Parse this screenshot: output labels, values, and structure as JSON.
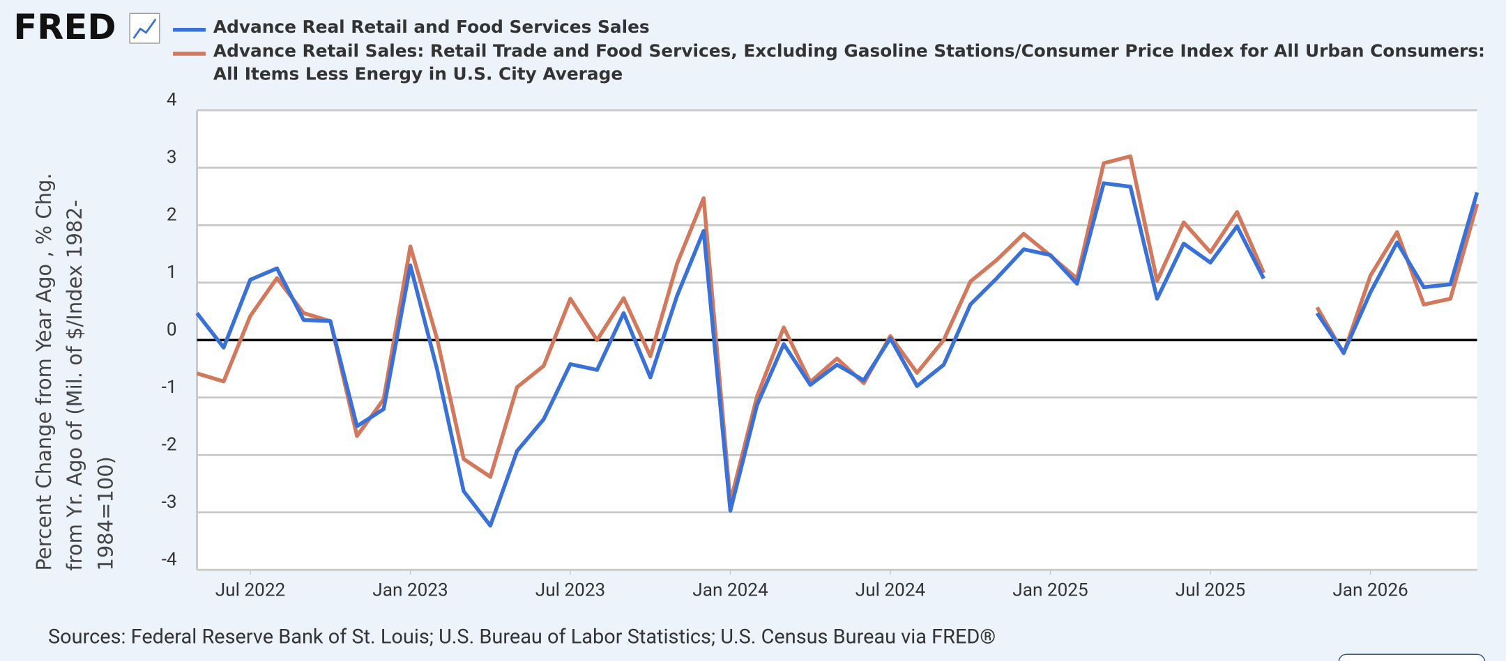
{
  "chart_data": {
    "type": "line",
    "logo": "FRED",
    "ylabel": "Percent Change from Year Ago , % Chg. from Yr. Ago of (Mil. of $/Index 1982-1984=100)",
    "source": "Sources: Federal Reserve Bank of St. Louis; U.S. Bureau of Labor Statistics; U.S. Census Bureau via FRED®",
    "x": [
      "2022-05",
      "2022-06",
      "2022-07",
      "2022-08",
      "2022-09",
      "2022-10",
      "2022-11",
      "2022-12",
      "2023-01",
      "2023-02",
      "2023-03",
      "2023-04",
      "2023-05",
      "2023-06",
      "2023-07",
      "2023-08",
      "2023-09",
      "2023-10",
      "2023-11",
      "2023-12",
      "2024-01",
      "2024-02",
      "2024-03",
      "2024-04",
      "2024-05",
      "2024-06",
      "2024-07",
      "2024-08",
      "2024-09",
      "2024-10",
      "2024-11",
      "2024-12",
      "2025-01",
      "2025-02",
      "2025-03",
      "2025-04",
      "2025-05",
      "2025-06",
      "2025-07",
      "2025-08",
      "2025-09",
      "2025-10",
      "2025-11",
      "2025-12",
      "2026-01",
      "2026-02",
      "2026-03",
      "2026-04",
      "2026-05"
    ],
    "series": [
      {
        "name": "Advance Real Retail and Food Services Sales",
        "color": "#3a71d6",
        "values": [
          0.47,
          -0.13,
          1.05,
          1.25,
          0.35,
          0.33,
          -1.5,
          -1.2,
          1.3,
          -0.5,
          -2.63,
          -3.23,
          -1.93,
          -1.38,
          -0.42,
          -0.52,
          0.47,
          -0.65,
          0.77,
          1.9,
          -2.97,
          -1.13,
          -0.07,
          -0.78,
          -0.43,
          -0.7,
          0.03,
          -0.8,
          -0.43,
          0.62,
          1.08,
          1.58,
          1.48,
          0.98,
          2.73,
          2.67,
          0.72,
          1.68,
          1.35,
          1.98,
          1.07,
          null,
          0.47,
          -0.22,
          0.83,
          1.7,
          0.92,
          0.97,
          2.57
        ]
      },
      {
        "name": "Advance Retail Sales: Retail Trade and Food Services, Excluding Gasoline Stations/Consumer Price Index for All Urban Consumers: All Items Less Energy in U.S. City Average",
        "color": "#d2785c",
        "values": [
          -0.58,
          -0.72,
          0.42,
          1.08,
          0.47,
          0.33,
          -1.67,
          -1.03,
          1.63,
          0.03,
          -2.07,
          -2.38,
          -0.82,
          -0.45,
          0.72,
          0,
          0.73,
          -0.28,
          1.33,
          2.47,
          -2.82,
          -0.98,
          0.22,
          -0.73,
          -0.32,
          -0.75,
          0.07,
          -0.57,
          0,
          1.02,
          1.4,
          1.85,
          1.47,
          1.07,
          3.08,
          3.2,
          1.03,
          2.05,
          1.53,
          2.23,
          1.17,
          null,
          0.57,
          -0.23,
          1.12,
          1.88,
          0.62,
          0.72,
          2.37
        ]
      }
    ],
    "xlim": [
      "2022-05",
      "2026-05"
    ],
    "xticks": [
      {
        "value": "2022-07",
        "label": "Jul 2022"
      },
      {
        "value": "2023-01",
        "label": "Jan 2023"
      },
      {
        "value": "2023-07",
        "label": "Jul 2023"
      },
      {
        "value": "2024-01",
        "label": "Jan 2024"
      },
      {
        "value": "2024-07",
        "label": "Jul 2024"
      },
      {
        "value": "2025-01",
        "label": "Jan 2025"
      },
      {
        "value": "2025-07",
        "label": "Jul 2025"
      },
      {
        "value": "2026-01",
        "label": "Jan 2026"
      }
    ],
    "ylim": [
      -4,
      4
    ],
    "yticks": [
      -4,
      -3,
      -2,
      -1,
      0,
      1,
      2,
      3,
      4
    ],
    "grid": true
  }
}
